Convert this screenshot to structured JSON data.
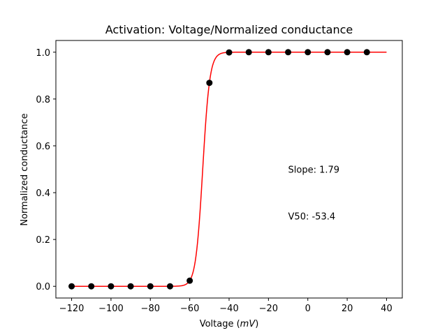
{
  "chart_data": {
    "type": "scatter",
    "title": "Activation: Voltage/Normalized conductance",
    "xlabel_prefix": "Voltage (",
    "xlabel_unit": "mV",
    "xlabel_suffix": ")",
    "ylabel": "Normalized conductance",
    "xlim": [
      -128,
      48
    ],
    "ylim": [
      -0.05,
      1.05
    ],
    "xticks": [
      -120,
      -100,
      -80,
      -60,
      -40,
      -20,
      0,
      20,
      40
    ],
    "xtick_labels": [
      "−120",
      "−100",
      "−80",
      "−60",
      "−40",
      "−20",
      "0",
      "20",
      "40"
    ],
    "yticks": [
      0.0,
      0.2,
      0.4,
      0.6,
      0.8,
      1.0
    ],
    "ytick_labels": [
      "0.0",
      "0.2",
      "0.4",
      "0.6",
      "0.8",
      "1.0"
    ],
    "grid": false,
    "series": [
      {
        "kind": "points",
        "color": "#000000",
        "x": [
          -120,
          -110,
          -100,
          -90,
          -80,
          -70,
          -60,
          -50,
          -40,
          -30,
          -20,
          -10,
          0,
          10,
          20,
          30
        ],
        "y": [
          0.0,
          0.0,
          0.0,
          0.0,
          0.0,
          0.0,
          0.024,
          0.869,
          0.999,
          1.0,
          1.0,
          1.0,
          1.0,
          1.0,
          1.0,
          1.0
        ]
      },
      {
        "kind": "fit",
        "color": "#ff0000",
        "function": "boltzmann",
        "v50": -53.4,
        "slope": 1.79,
        "x_range": [
          -120,
          40
        ]
      }
    ],
    "annotations": [
      {
        "text": "Slope: 1.79",
        "x": -10,
        "y": 0.5
      },
      {
        "text": "V50: -53.4",
        "x": -10,
        "y": 0.3
      }
    ]
  }
}
